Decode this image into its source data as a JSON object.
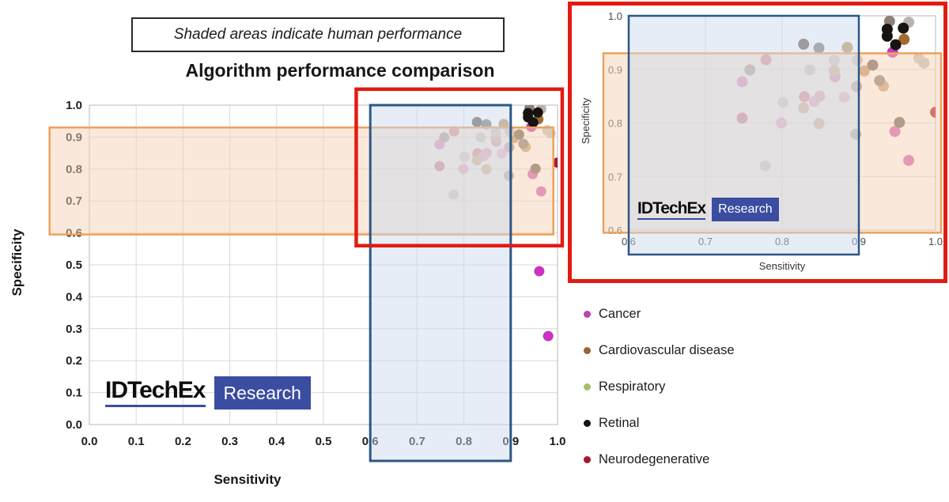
{
  "note": {
    "text": "Shaded areas indicate human performance"
  },
  "main_chart": {
    "title": "Algorithm performance comparison",
    "xlabel": "Sensitivity",
    "ylabel": "Specificity"
  },
  "inset": {
    "xlabel": "Sensitivity",
    "ylabel": "Specificity"
  },
  "logo": {
    "brand": "IDTechEx",
    "sub": "Research"
  },
  "legend": {
    "items": [
      {
        "label": "Cancer",
        "color": "#bb44ad"
      },
      {
        "label": "Cardiovascular disease",
        "color": "#96643a"
      },
      {
        "label": "Respiratory",
        "color": "#a5bf6a"
      },
      {
        "label": "Retinal",
        "color": "#131313"
      },
      {
        "label": "Neurodegenerative",
        "color": "#a81629"
      }
    ]
  },
  "colors": {
    "highlight_red": "#e31b12",
    "band_orange_fill": "#f6d4b5",
    "band_orange_stroke": "#eda15e",
    "band_blue_fill": "#ccd9ec",
    "band_blue_stroke": "#2b5786",
    "grid": "#d9d9d9",
    "plot_border": "#c4c4c4",
    "logo_blue": "#3a4da0"
  },
  "chart_data": {
    "type": "scatter",
    "title": "Algorithm performance comparison",
    "xlabel": "Sensitivity",
    "ylabel": "Specificity",
    "annotation": "Shaded areas indicate human performance",
    "main_axis": {
      "xlim": [
        0,
        1
      ],
      "ylim": [
        0,
        1
      ],
      "xticks": [
        0,
        0.1,
        0.2,
        0.3,
        0.4,
        0.5,
        0.6,
        0.7,
        0.8,
        0.9,
        1
      ],
      "yticks": [
        0,
        0.1,
        0.2,
        0.3,
        0.4,
        0.5,
        0.6,
        0.7,
        0.8,
        0.9,
        1
      ]
    },
    "inset_axis": {
      "xlim": [
        0.6,
        1
      ],
      "ylim": [
        0.6,
        1
      ],
      "xticks": [
        0.6,
        0.7,
        0.8,
        0.9,
        1
      ],
      "yticks": [
        0.6,
        0.7,
        0.8,
        0.9,
        1
      ]
    },
    "human_performance_bands": {
      "specificity_band": {
        "axis": "y",
        "range": [
          0.595,
          0.93
        ]
      },
      "sensitivity_band": {
        "axis": "x",
        "range": [
          0.6,
          0.9
        ]
      }
    },
    "highlight_rect": {
      "x": [
        0.57,
        1.01
      ],
      "y": [
        0.56,
        1.05
      ]
    },
    "series": [
      {
        "name": "Cancer",
        "color": "#bb44ad",
        "points": [
          [
            0.944,
            0.932,
            "#c73bbb"
          ],
          [
            0.779,
            0.918,
            "#d26677"
          ],
          [
            0.869,
            0.886,
            "#cb79c0"
          ],
          [
            0.748,
            0.877,
            "#d06cc0"
          ],
          [
            0.829,
            0.849,
            "#d26677"
          ],
          [
            0.849,
            0.85,
            "#e18fbb"
          ],
          [
            0.842,
            0.84,
            "#e394c2"
          ],
          [
            0.881,
            0.848,
            "#e8a7cb"
          ],
          [
            0.748,
            0.809,
            "#c05670"
          ],
          [
            0.799,
            0.8,
            "#e394c2"
          ],
          [
            0.947,
            0.784,
            "#d45fb5"
          ],
          [
            0.965,
            0.73,
            "#d45fb5"
          ],
          [
            0.961,
            0.48,
            "#c734c2"
          ],
          [
            0.98,
            0.277,
            "#c734c2"
          ]
        ]
      },
      {
        "name": "Cardiovascular disease",
        "color": "#96643a",
        "points": [
          [
            0.885,
            0.941,
            "#c2996a"
          ],
          [
            0.868,
            0.898,
            "#c9a478"
          ],
          [
            0.828,
            0.828,
            "#c9a478"
          ],
          [
            0.848,
            0.799,
            "#c9a478"
          ],
          [
            0.907,
            0.897,
            "#c2996a"
          ],
          [
            0.932,
            0.869,
            "#c9a478"
          ],
          [
            0.959,
            0.956,
            "#a16c2e"
          ]
        ]
      },
      {
        "name": "Respiratory",
        "color": "#a5bf6a",
        "points": []
      },
      {
        "name": "Retinal",
        "color": "#131313",
        "points": [
          [
            0.94,
            0.99,
            "#8b8178"
          ],
          [
            0.965,
            0.988,
            "#b9b2ae"
          ],
          [
            0.828,
            0.947,
            "#6f655d"
          ],
          [
            0.848,
            0.94,
            "#8b8178"
          ],
          [
            0.868,
            0.917,
            "#c7c0bb"
          ],
          [
            0.898,
            0.917,
            "#c7c0bb"
          ],
          [
            0.758,
            0.899,
            "#8b8178"
          ],
          [
            0.836,
            0.899,
            "#c7c0bb"
          ],
          [
            0.897,
            0.868,
            "#a29a92"
          ],
          [
            0.801,
            0.838,
            "#cfc8c4"
          ],
          [
            0.896,
            0.779,
            "#a29a92"
          ],
          [
            0.778,
            0.72,
            "#c7c0bb"
          ],
          [
            0.918,
            0.908,
            "#6f655d"
          ],
          [
            0.927,
            0.879,
            "#8b8178"
          ],
          [
            0.978,
            0.921,
            "#c7c0bb"
          ],
          [
            0.985,
            0.912,
            "#c7c0bb"
          ],
          [
            0.953,
            0.801,
            "#6f655d"
          ],
          [
            0.937,
            0.975,
            "#171311"
          ],
          [
            0.937,
            0.962,
            "#171311"
          ],
          [
            0.958,
            0.977,
            "#171311"
          ],
          [
            0.948,
            0.946,
            "#171311"
          ]
        ]
      },
      {
        "name": "Neurodegenerative",
        "color": "#a81629",
        "points": [
          [
            1.0,
            0.82,
            "#ae1a27"
          ]
        ]
      }
    ]
  }
}
